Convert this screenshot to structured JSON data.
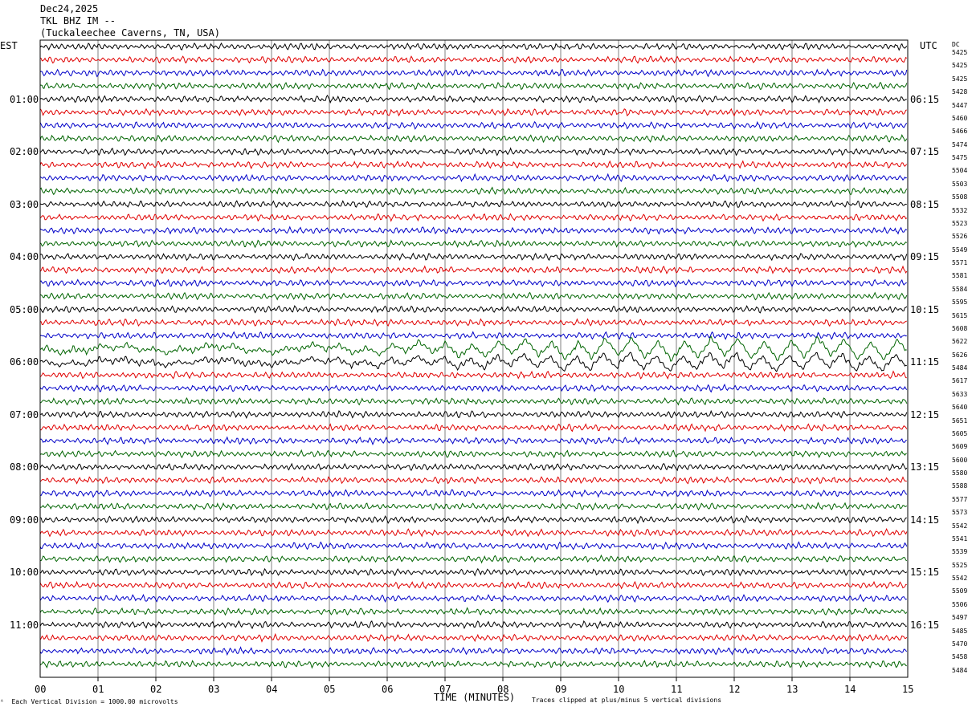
{
  "header": {
    "date": "Dec24,2025",
    "station": "TKL BHZ IM --",
    "location": "(Tuckaleechee Caverns, TN, USA)"
  },
  "left_tz": "EST",
  "right_tz": "UTC",
  "dc_header": "DC",
  "chart_data": {
    "type": "line",
    "title": "TKL BHZ IM --",
    "xlabel": "TIME (MINUTES)",
    "x_ticks": [
      "00",
      "01",
      "02",
      "03",
      "04",
      "05",
      "06",
      "07",
      "08",
      "09",
      "10",
      "11",
      "12",
      "13",
      "14",
      "15"
    ],
    "xlim": [
      0,
      15
    ],
    "left_hour_labels": [
      "01:00",
      "02:00",
      "03:00",
      "04:00",
      "05:00",
      "06:00",
      "07:00",
      "08:00",
      "09:00",
      "10:00",
      "11:00"
    ],
    "right_hour_labels": [
      "06:15",
      "07:15",
      "08:15",
      "09:15",
      "10:15",
      "11:15",
      "12:15",
      "13:15",
      "14:15",
      "15:15",
      "16:15"
    ],
    "dc_offsets": [
      "5425",
      "5425",
      "5425",
      "5428",
      "5447",
      "5460",
      "5466",
      "5474",
      "5475",
      "5504",
      "5503",
      "5508",
      "5532",
      "5523",
      "5526",
      "5549",
      "5571",
      "5581",
      "5584",
      "5595",
      "5615",
      "5608",
      "5622",
      "5626",
      "5484",
      "5617",
      "5633",
      "5640",
      "5651",
      "5605",
      "5609",
      "5600",
      "5580",
      "5588",
      "5577",
      "5573",
      "5542",
      "5541",
      "5539",
      "5525",
      "5542",
      "5509",
      "5506",
      "5497",
      "5485",
      "5470",
      "5458",
      "5484"
    ],
    "trace_colors": [
      "#000000",
      "#e00000",
      "#0000c8",
      "#006400"
    ],
    "grid_color": "#808080",
    "annotations": [
      "Each Vertical Division = 1000.00 microvolts",
      "Traces clipped at plus/minus 5 vertical divisions"
    ]
  }
}
